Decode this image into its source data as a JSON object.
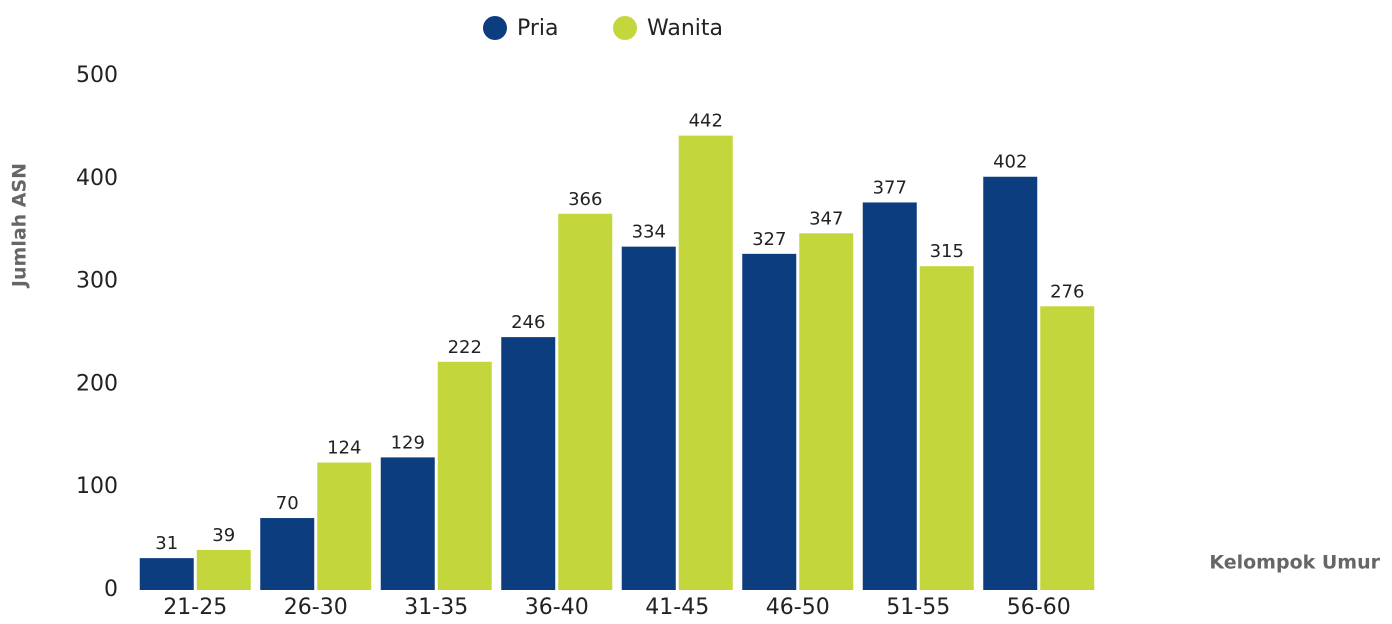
{
  "chart_data": {
    "type": "bar",
    "categories": [
      "21-25",
      "26-30",
      "31-35",
      "36-40",
      "41-45",
      "46-50",
      "51-55",
      "56-60"
    ],
    "series": [
      {
        "name": "Pria",
        "color": "#0b3d7f",
        "values": [
          31,
          70,
          129,
          246,
          334,
          327,
          377,
          402
        ]
      },
      {
        "name": "Wanita",
        "color": "#c3d63b",
        "values": [
          39,
          124,
          222,
          366,
          442,
          347,
          315,
          276
        ]
      }
    ],
    "y_axis_label": "Jumlah ASN",
    "x_axis_label": "Kelompok Umur",
    "ylim": [
      0,
      500
    ],
    "yticks": [
      0,
      100,
      200,
      300,
      400,
      500
    ],
    "grid": false,
    "legend": "top"
  }
}
